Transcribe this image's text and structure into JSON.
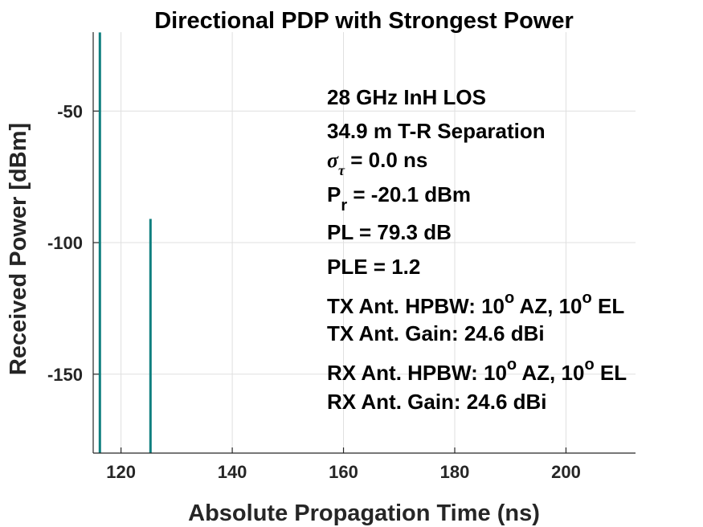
{
  "chart_data": {
    "type": "line",
    "title": "Directional PDP with Strongest Power",
    "xlabel": "Absolute Propagation Time (ns)",
    "ylabel": "Received Power [dBm]",
    "xlim": [
      115,
      212.5
    ],
    "ylim": [
      -180,
      -20
    ],
    "xticks": [
      120,
      140,
      160,
      180,
      200
    ],
    "yticks": [
      -50,
      -100,
      -150
    ],
    "grid": true,
    "color": "#0f7f7f",
    "baseline": -180,
    "series": [
      {
        "x": [
          116.2,
          125.3
        ],
        "y": [
          -20.1,
          -91.0
        ]
      }
    ],
    "annotations": {
      "line1": "28 GHz InH LOS",
      "line2": "34.9 m T-R Separation",
      "sigma": {
        "symbol": "σ",
        "sub": "τ",
        "rest": " = 0.0 ns"
      },
      "pr": {
        "symbol": "P",
        "sub": "r",
        "rest": " = -20.1 dBm"
      },
      "line5": "PL = 79.3 dB",
      "line6": "PLE = 1.2",
      "tx_hpbw": {
        "pre": "TX Ant. HPBW: 10",
        "sup1": "o",
        "mid": " AZ, 10",
        "sup2": "o",
        "post": " EL"
      },
      "tx_gain": "TX Ant. Gain: 24.6 dBi",
      "rx_hpbw": {
        "pre": "RX Ant. HPBW: 10",
        "sup1": "o",
        "mid": " AZ, 10",
        "sup2": "o",
        "post": " EL"
      },
      "rx_gain": "RX Ant. Gain: 24.6 dBi"
    }
  }
}
